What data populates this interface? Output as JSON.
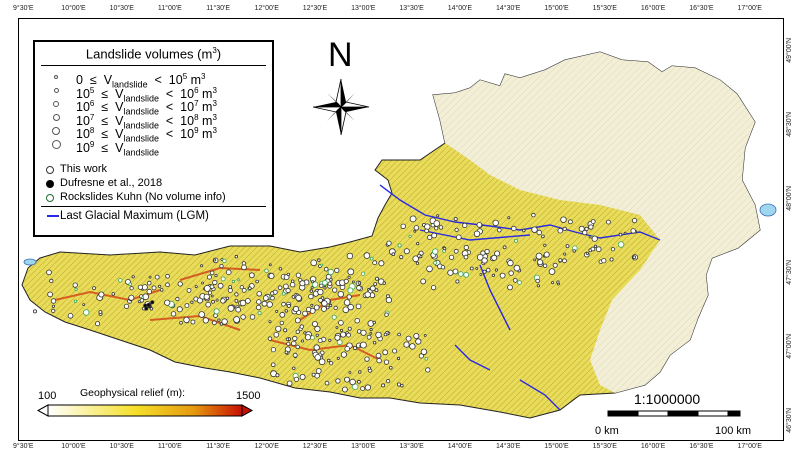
{
  "map": {
    "title_north": "N",
    "scale": "1:1000000",
    "scalebar_start": "0 km",
    "scalebar_end": "100 km",
    "top_ticks": [
      "9°30'E",
      "10°00'E",
      "10°30'E",
      "11°00'E",
      "11°30'E",
      "12°00'E",
      "12°30'E",
      "13°00'E",
      "13°30'E",
      "14°00'E",
      "14°30'E",
      "15°00'E",
      "15°30'E",
      "16°00'E",
      "16°30'E",
      "17°00'E"
    ],
    "right_ticks": [
      "49°00'N",
      "48°30'N",
      "48°00'N",
      "47°30'N",
      "47°00'N",
      "46°30'N"
    ],
    "relief_legend": {
      "title": "Geophysical relief (m):",
      "min": "100",
      "max": "1500"
    },
    "colors": {
      "lgm": "#2a2ae0",
      "relief_low": "#ffffff",
      "relief_mid": "#f2e11a",
      "relief_high": "#d41f00",
      "rockslides": "#3aa655"
    }
  },
  "legend": {
    "title": "Landslide volumes (m",
    "title_sup": "3",
    "title_tail": ")",
    "sub": "landslide",
    "v": "V",
    "leq": "≤",
    "lt": "<",
    "unit": "m",
    "rows": [
      {
        "low": "0",
        "low_exp": "",
        "high": "10",
        "high_exp": "5"
      },
      {
        "low": "10",
        "low_exp": "5",
        "high": "10",
        "high_exp": "6"
      },
      {
        "low": "10",
        "low_exp": "6",
        "high": "10",
        "high_exp": "7"
      },
      {
        "low": "10",
        "low_exp": "7",
        "high": "10",
        "high_exp": "8"
      },
      {
        "low": "10",
        "low_exp": "8",
        "high": "10",
        "high_exp": "9"
      },
      {
        "low": "10",
        "low_exp": "9",
        "high": "",
        "high_exp": ""
      }
    ],
    "sources": [
      {
        "label": "This work"
      },
      {
        "label": "Dufresne et al., 2018"
      },
      {
        "label": "Rockslides Kuhn (No volume info)"
      }
    ],
    "lgm_label": "Last Glacial Maximum (LGM)"
  }
}
